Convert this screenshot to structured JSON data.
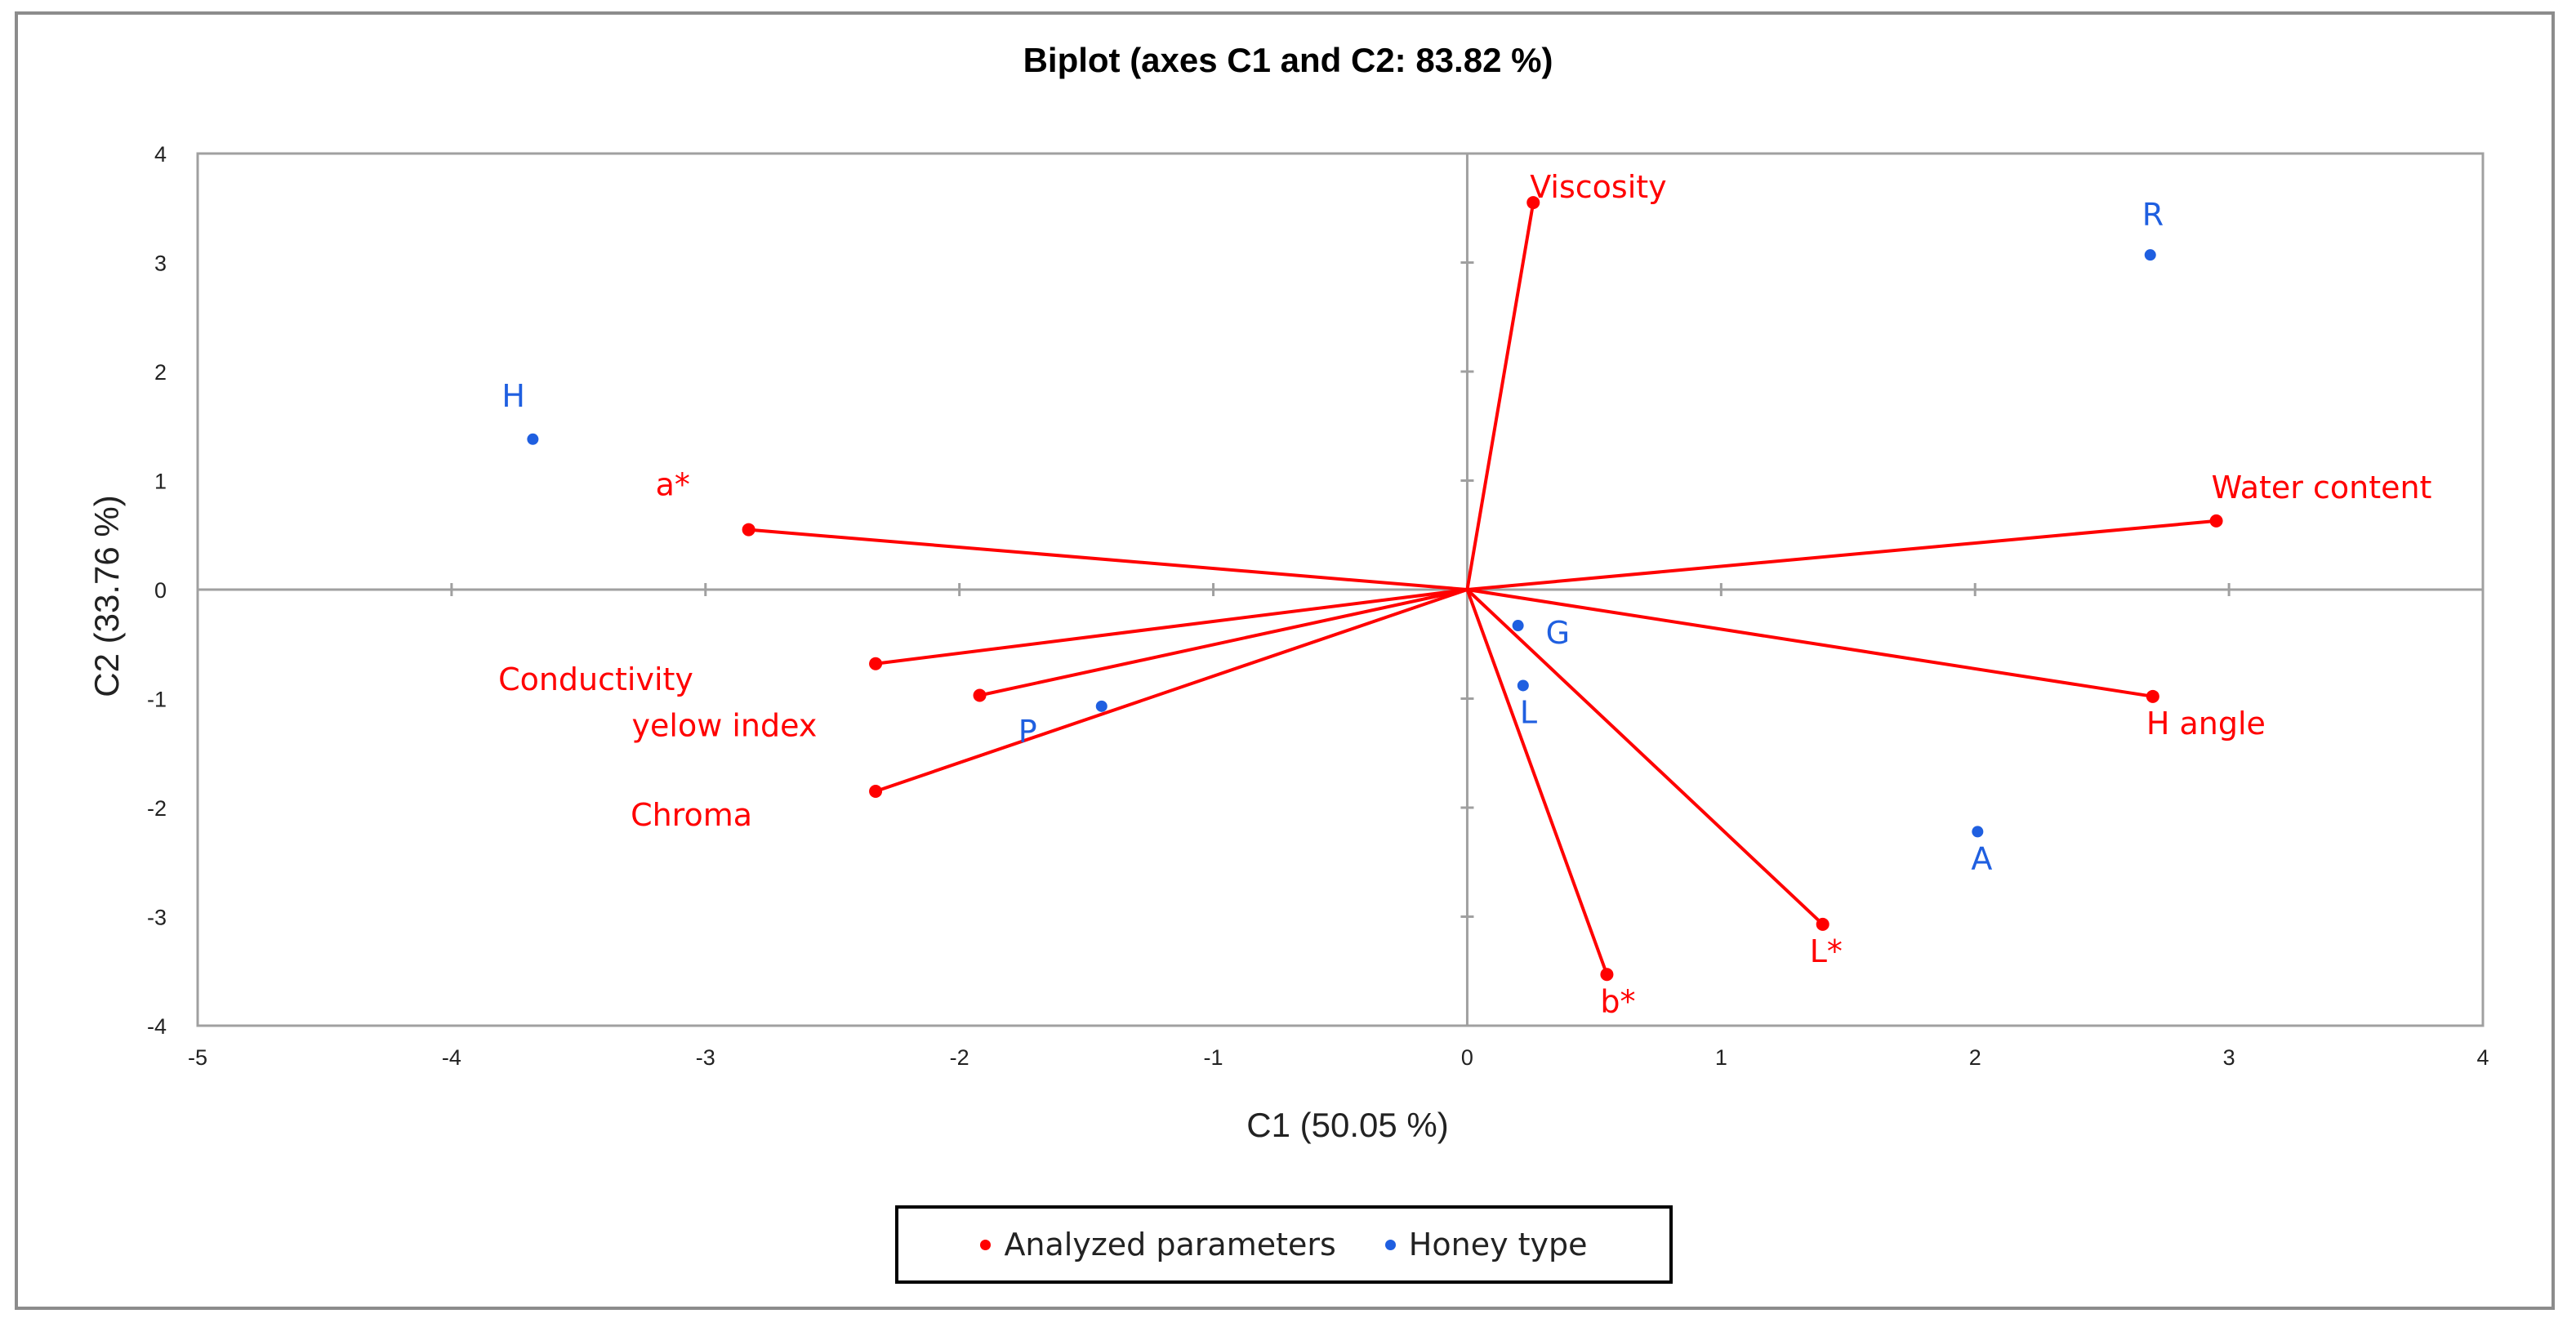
{
  "chart_data": {
    "type": "scatter",
    "subtype": "biplot",
    "title": "Biplot (axes C1 and C2: 83.82 %)",
    "xlabel": "C1 (50.05 %)",
    "ylabel": "C2 (33.76 %)",
    "xlim": [
      -5,
      4
    ],
    "ylim": [
      -4,
      4
    ],
    "xticks": [
      "-5",
      "-4",
      "-3",
      "-2",
      "-1",
      "0",
      "1",
      "2",
      "3",
      "4"
    ],
    "yticks": [
      "4",
      "3",
      "2",
      "1",
      "0",
      "-1",
      "-2",
      "-3",
      "-4"
    ],
    "colors": {
      "parameters": "#ff0000",
      "honey": "#1f5fe0",
      "axis": "#a0a0a0"
    },
    "legend": [
      {
        "label": "Analyzed parameters",
        "color": "#ff0000"
      },
      {
        "label": "Honey type",
        "color": "#1f5fe0"
      }
    ],
    "series": [
      {
        "name": "Analyzed parameters",
        "vectors": true,
        "points": [
          {
            "label": "Viscosity",
            "x": 0.26,
            "y": 3.55
          },
          {
            "label": "Water content",
            "x": 2.95,
            "y": 0.63
          },
          {
            "label": "H angle",
            "x": 2.7,
            "y": -0.98
          },
          {
            "label": "L*",
            "x": 1.4,
            "y": -3.07
          },
          {
            "label": "b*",
            "x": 0.55,
            "y": -3.53
          },
          {
            "label": "a*",
            "x": -2.83,
            "y": 0.55
          },
          {
            "label": "Conductivity",
            "x": -2.33,
            "y": -0.68
          },
          {
            "label": "yelow index",
            "x": -1.92,
            "y": -0.97
          },
          {
            "label": "Chroma",
            "x": -2.33,
            "y": -1.85
          }
        ]
      },
      {
        "name": "Honey type",
        "points": [
          {
            "label": "R",
            "x": 2.69,
            "y": 3.07
          },
          {
            "label": "H",
            "x": -3.68,
            "y": 1.38
          },
          {
            "label": "G",
            "x": 0.2,
            "y": -0.33
          },
          {
            "label": "L",
            "x": 0.22,
            "y": -0.88
          },
          {
            "label": "P",
            "x": -1.44,
            "y": -1.07
          },
          {
            "label": "A",
            "x": 2.01,
            "y": -2.22
          }
        ]
      }
    ]
  }
}
